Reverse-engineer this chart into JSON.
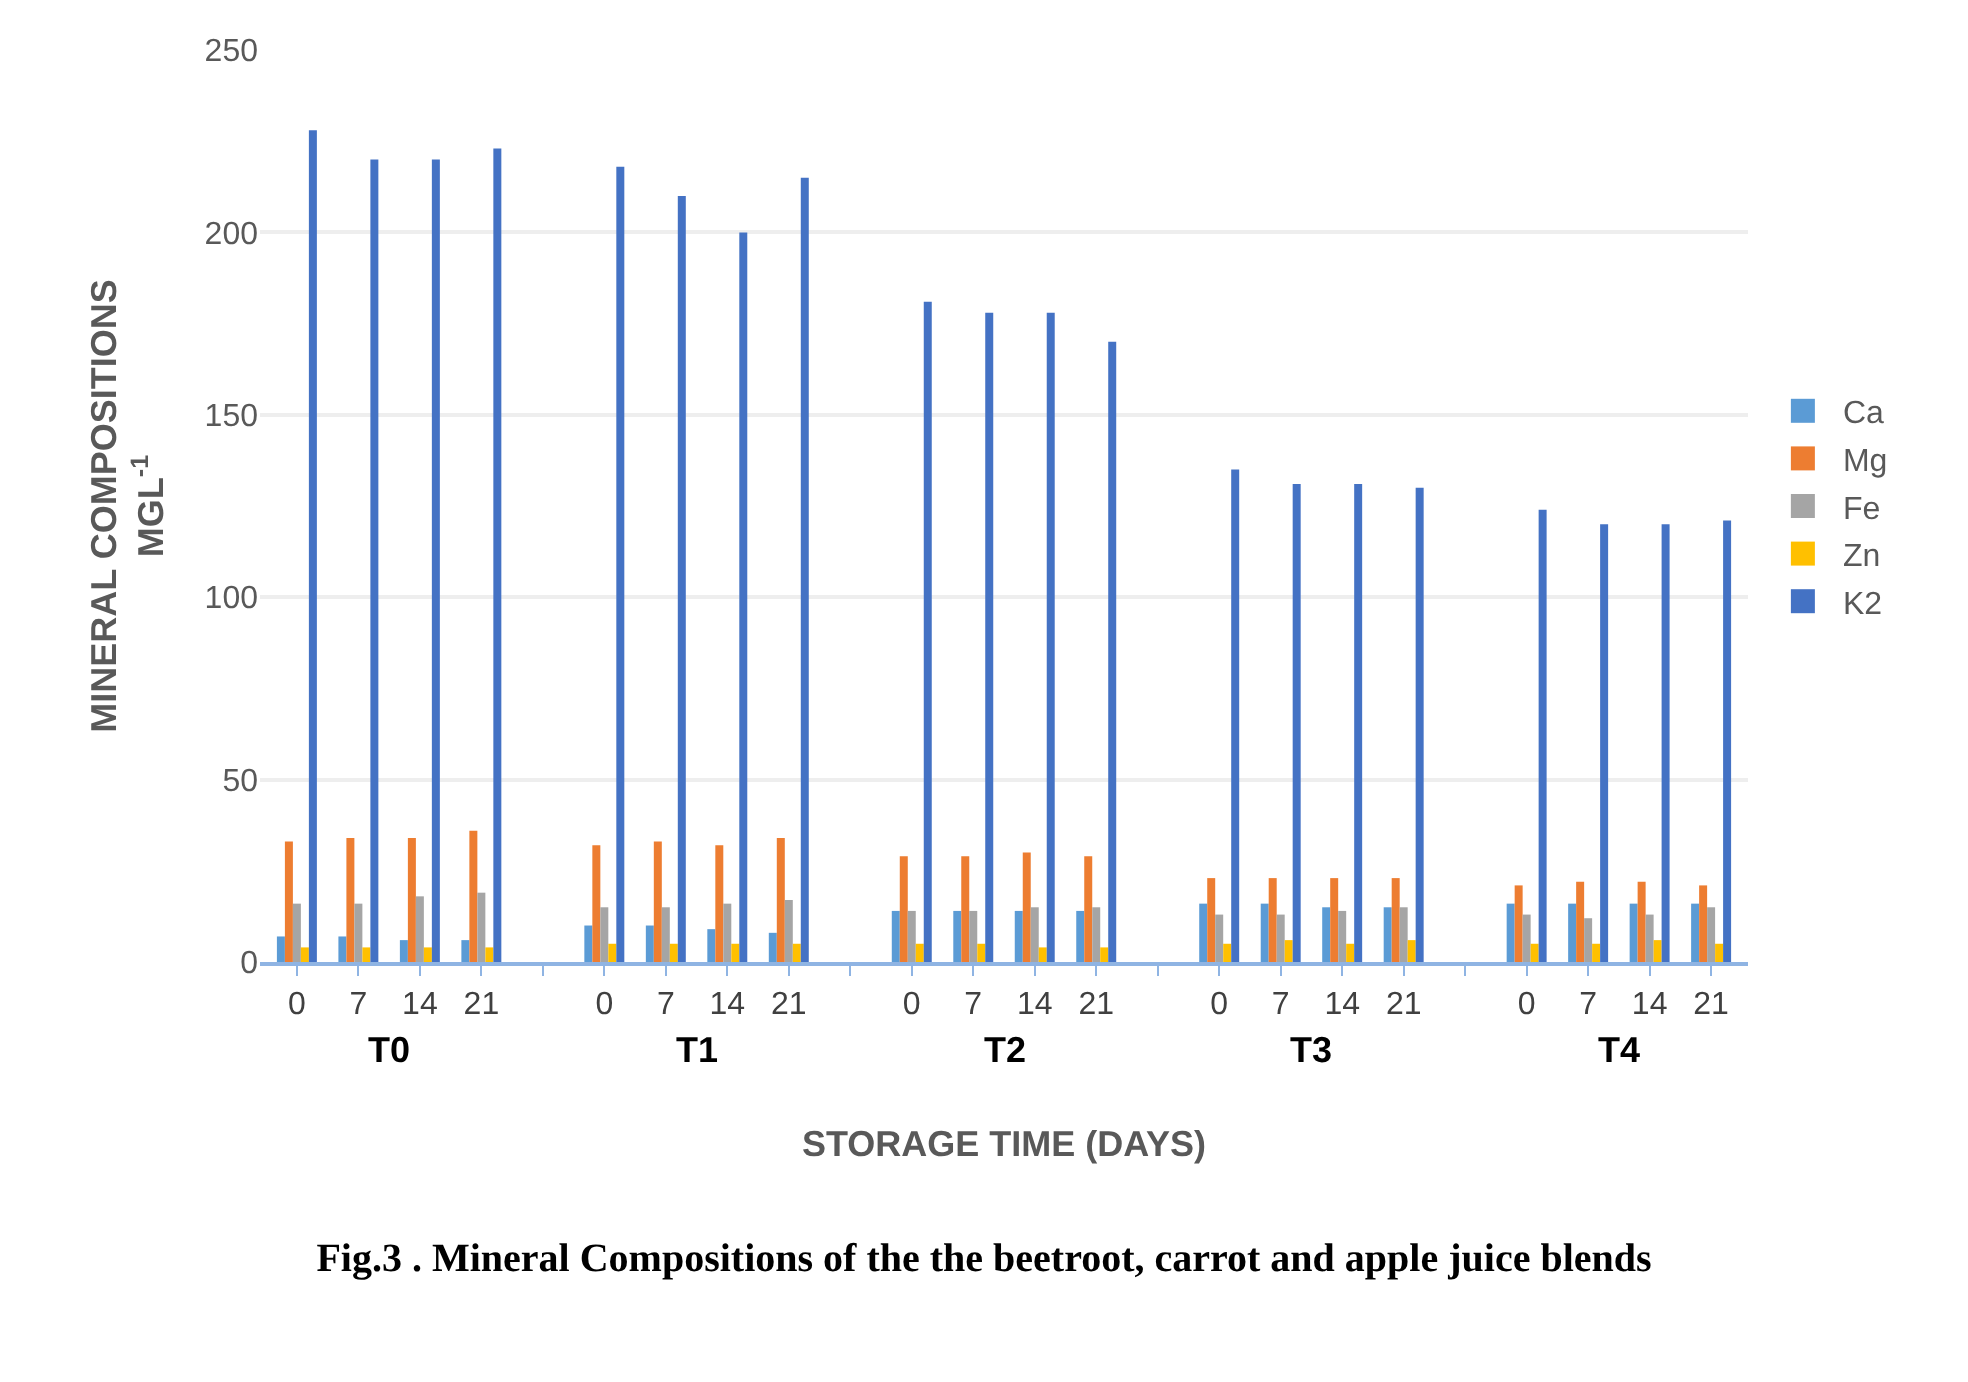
{
  "chart_data": {
    "type": "bar",
    "title": "Fig.3 . Mineral Compositions of the the beetroot, carrot and apple juice blends",
    "xlabel": "STORAGE TIME (DAYS)",
    "ylabel": "MINERAL COMPOSITIONS\nMGL$^{-1}$",
    "categories": [
      "0",
      "7",
      "14",
      "21",
      null,
      "0",
      "7",
      "14",
      "21",
      null,
      "0",
      "7",
      "14",
      "21",
      null,
      "0",
      "7",
      "14",
      "21",
      null,
      "0",
      "7",
      "14",
      "21"
    ],
    "annotations": [
      "T0",
      "T1",
      "T2",
      "T3",
      "T4"
    ],
    "series": [
      {
        "name": "Ca",
        "color": "#5b9bd5",
        "values": [
          7,
          7,
          6,
          6,
          null,
          10,
          10,
          9,
          8,
          null,
          14,
          14,
          14,
          14,
          null,
          16,
          16,
          15,
          15,
          null,
          16,
          16,
          16,
          16
        ]
      },
      {
        "name": "Mg",
        "color": "#ed7d31",
        "values": [
          33,
          34,
          34,
          36,
          null,
          32,
          33,
          32,
          34,
          null,
          29,
          29,
          30,
          29,
          null,
          23,
          23,
          23,
          23,
          null,
          21,
          22,
          22,
          21
        ]
      },
      {
        "name": "Fe",
        "color": "#a5a5a5",
        "values": [
          16,
          16,
          18,
          19,
          null,
          15,
          15,
          16,
          17,
          null,
          14,
          14,
          15,
          15,
          null,
          13,
          13,
          14,
          15,
          null,
          13,
          12,
          13,
          15
        ]
      },
      {
        "name": "Zn",
        "color": "#ffc000",
        "values": [
          4,
          4,
          4,
          4,
          null,
          5,
          5,
          5,
          5,
          null,
          5,
          5,
          4,
          4,
          null,
          5,
          6,
          5,
          6,
          null,
          5,
          5,
          6,
          5
        ]
      },
      {
        "name": "K2",
        "color": "#4472c4",
        "values": [
          228,
          220,
          220,
          223,
          null,
          218,
          210,
          200,
          215,
          null,
          181,
          178,
          178,
          170,
          null,
          135,
          131,
          131,
          130,
          null,
          124,
          120,
          120,
          121
        ]
      }
    ],
    "ylim": [
      0,
      250
    ],
    "yticks": [
      0,
      50,
      100,
      150,
      200,
      250
    ],
    "grid": "y",
    "legend": "right"
  }
}
